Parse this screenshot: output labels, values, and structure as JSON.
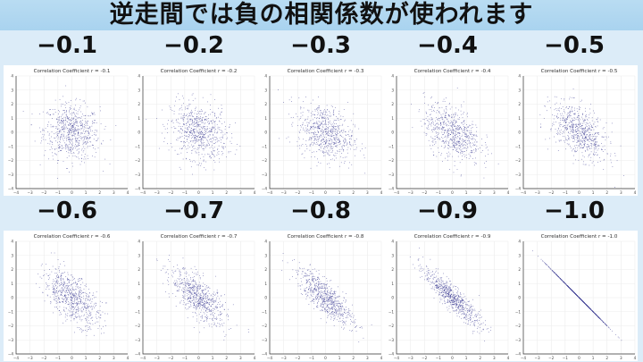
{
  "header": {
    "title": "逆走間では負の相関係数が使われます"
  },
  "colors": {
    "banner": "#aed6f1",
    "background": "#dcecf8",
    "points": "#2a2a8a",
    "grid": "#e8e8e8"
  },
  "chart_data": [
    {
      "type": "scatter",
      "label": "−0.1",
      "title": "Correlation Coefficient r = -0.1",
      "r": -0.1,
      "xlim": [
        -4,
        4
      ],
      "ylim": [
        -4,
        4
      ],
      "xticks": [
        -4,
        -3,
        -2,
        -1,
        0,
        1,
        2,
        3,
        4
      ],
      "yticks": [
        -4,
        -3,
        -2,
        -1,
        0,
        1,
        2,
        3,
        4
      ],
      "grid": true,
      "n_points": 1000
    },
    {
      "type": "scatter",
      "label": "−0.2",
      "title": "Correlation Coefficient r = -0.2",
      "r": -0.2,
      "xlim": [
        -4,
        4
      ],
      "ylim": [
        -4,
        4
      ],
      "xticks": [
        -4,
        -3,
        -2,
        -1,
        0,
        1,
        2,
        3,
        4
      ],
      "yticks": [
        -4,
        -3,
        -2,
        -1,
        0,
        1,
        2,
        3,
        4
      ],
      "grid": true,
      "n_points": 1000
    },
    {
      "type": "scatter",
      "label": "−0.3",
      "title": "Correlation Coefficient r = -0.3",
      "r": -0.3,
      "xlim": [
        -4,
        4
      ],
      "ylim": [
        -4,
        4
      ],
      "xticks": [
        -4,
        -3,
        -2,
        -1,
        0,
        1,
        2,
        3,
        4
      ],
      "yticks": [
        -4,
        -3,
        -2,
        -1,
        0,
        1,
        2,
        3,
        4
      ],
      "grid": true,
      "n_points": 1000
    },
    {
      "type": "scatter",
      "label": "−0.4",
      "title": "Correlation Coefficient r = -0.4",
      "r": -0.4,
      "xlim": [
        -4,
        4
      ],
      "ylim": [
        -4,
        4
      ],
      "xticks": [
        -4,
        -3,
        -2,
        -1,
        0,
        1,
        2,
        3,
        4
      ],
      "yticks": [
        -4,
        -3,
        -2,
        -1,
        0,
        1,
        2,
        3,
        4
      ],
      "grid": true,
      "n_points": 1000
    },
    {
      "type": "scatter",
      "label": "−0.5",
      "title": "Correlation Coefficient r = -0.5",
      "r": -0.5,
      "xlim": [
        -4,
        4
      ],
      "ylim": [
        -4,
        4
      ],
      "xticks": [
        -4,
        -3,
        -2,
        -1,
        0,
        1,
        2,
        3,
        4
      ],
      "yticks": [
        -4,
        -3,
        -2,
        -1,
        0,
        1,
        2,
        3,
        4
      ],
      "grid": true,
      "n_points": 1000
    },
    {
      "type": "scatter",
      "label": "−0.6",
      "title": "Correlation Coefficient r = -0.6",
      "r": -0.6,
      "xlim": [
        -4,
        4
      ],
      "ylim": [
        -4,
        4
      ],
      "xticks": [
        -4,
        -3,
        -2,
        -1,
        0,
        1,
        2,
        3,
        4
      ],
      "yticks": [
        -4,
        -3,
        -2,
        -1,
        0,
        1,
        2,
        3,
        4
      ],
      "grid": true,
      "n_points": 1000
    },
    {
      "type": "scatter",
      "label": "−0.7",
      "title": "Correlation Coefficient r = -0.7",
      "r": -0.7,
      "xlim": [
        -4,
        4
      ],
      "ylim": [
        -4,
        4
      ],
      "xticks": [
        -4,
        -3,
        -2,
        -1,
        0,
        1,
        2,
        3,
        4
      ],
      "yticks": [
        -4,
        -3,
        -2,
        -1,
        0,
        1,
        2,
        3,
        4
      ],
      "grid": true,
      "n_points": 1000
    },
    {
      "type": "scatter",
      "label": "−0.8",
      "title": "Correlation Coefficient r = -0.8",
      "r": -0.8,
      "xlim": [
        -4,
        4
      ],
      "ylim": [
        -4,
        4
      ],
      "xticks": [
        -4,
        -3,
        -2,
        -1,
        0,
        1,
        2,
        3,
        4
      ],
      "yticks": [
        -4,
        -3,
        -2,
        -1,
        0,
        1,
        2,
        3,
        4
      ],
      "grid": true,
      "n_points": 1000
    },
    {
      "type": "scatter",
      "label": "−0.9",
      "title": "Correlation Coefficient r = -0.9",
      "r": -0.9,
      "xlim": [
        -4,
        4
      ],
      "ylim": [
        -4,
        4
      ],
      "xticks": [
        -4,
        -3,
        -2,
        -1,
        0,
        1,
        2,
        3,
        4
      ],
      "yticks": [
        -4,
        -3,
        -2,
        -1,
        0,
        1,
        2,
        3,
        4
      ],
      "grid": true,
      "n_points": 1000
    },
    {
      "type": "scatter",
      "label": "−1.0",
      "title": "Correlation Coefficient r = -1.0",
      "r": -1.0,
      "xlim": [
        -4,
        4
      ],
      "ylim": [
        -4,
        4
      ],
      "xticks": [
        -4,
        -3,
        -2,
        -1,
        0,
        1,
        2,
        3,
        4
      ],
      "yticks": [
        -4,
        -3,
        -2,
        -1,
        0,
        1,
        2,
        3,
        4
      ],
      "grid": true,
      "n_points": 1000
    }
  ]
}
